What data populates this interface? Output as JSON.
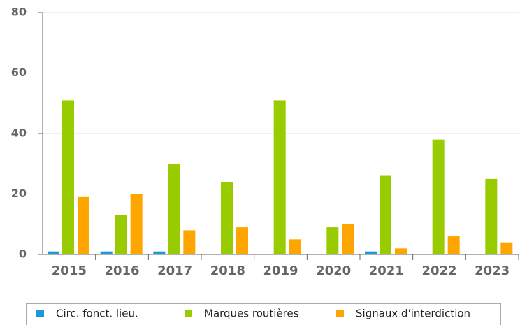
{
  "chart_data": {
    "type": "bar",
    "categories": [
      "2015",
      "2016",
      "2017",
      "2018",
      "2019",
      "2020",
      "2021",
      "2022",
      "2023"
    ],
    "series": [
      {
        "name": "Circ. fonct. lieu.",
        "color": "#1a9ad6",
        "values": [
          1,
          1,
          1,
          0,
          0,
          0,
          1,
          0,
          0
        ]
      },
      {
        "name": "Marques routières",
        "color": "#99cc00",
        "values": [
          51,
          13,
          30,
          24,
          51,
          9,
          26,
          38,
          25
        ]
      },
      {
        "name": "Signaux d'interdiction",
        "color": "#ffa500",
        "values": [
          19,
          20,
          8,
          9,
          5,
          10,
          2,
          6,
          4
        ]
      }
    ],
    "ylim": [
      0,
      80
    ],
    "yticks": [
      0,
      20,
      40,
      60,
      80
    ],
    "grid": true,
    "legend": "bottom"
  }
}
